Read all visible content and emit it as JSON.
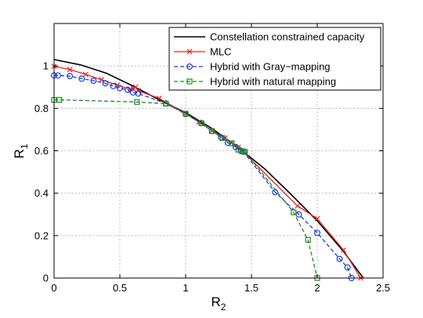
{
  "chart_data": {
    "type": "line",
    "xlabel": "R",
    "xlabel_sub": "2",
    "ylabel": "R",
    "ylabel_sub": "1",
    "xlim": [
      0,
      2.5
    ],
    "ylim": [
      0,
      1.2
    ],
    "xticks": [
      0,
      0.5,
      1,
      1.5,
      2,
      2.5
    ],
    "yticks": [
      0,
      0.2,
      0.4,
      0.6,
      0.8,
      1
    ],
    "xtick_labels": [
      "0",
      "0.5",
      "1",
      "1.5",
      "2",
      "2.5"
    ],
    "ytick_labels": [
      "0",
      "0.2",
      "0.4",
      "0.6",
      "0.8",
      "1"
    ],
    "grid": true,
    "legend_position": "top-right",
    "series": [
      {
        "name": "Constellation constrained capacity",
        "color": "#000000",
        "line_style": "solid",
        "marker": "none",
        "x": [
          0,
          0.2,
          0.4,
          0.6,
          0.8,
          1.0,
          1.2,
          1.4,
          1.6,
          1.8,
          2.0,
          2.2,
          2.35
        ],
        "y": [
          1.03,
          1.005,
          0.965,
          0.905,
          0.84,
          0.78,
          0.705,
          0.615,
          0.515,
          0.395,
          0.27,
          0.125,
          0.0
        ]
      },
      {
        "name": "MLC",
        "color": "#e8201c",
        "line_style": "solid",
        "marker": "x",
        "x": [
          0,
          0.12,
          0.24,
          0.36,
          0.48,
          0.58,
          0.6,
          0.62,
          0.64,
          0.8,
          1.0,
          1.1,
          1.2,
          1.3,
          1.35,
          1.4,
          1.43,
          1.85,
          2.0,
          2.2,
          2.33
        ],
        "y": [
          0.998,
          0.983,
          0.96,
          0.935,
          0.91,
          0.89,
          0.893,
          0.9,
          0.883,
          0.847,
          0.775,
          0.735,
          0.695,
          0.66,
          0.638,
          0.617,
          0.6,
          0.34,
          0.28,
          0.132,
          0.0
        ]
      },
      {
        "name": "Hybrid with Gray−mapping",
        "color": "#1f3fd8",
        "line_style": "dashed",
        "marker": "o",
        "x": [
          0.0,
          0.03,
          0.12,
          0.21,
          0.3,
          0.39,
          0.45,
          0.5,
          0.56,
          0.6,
          0.64,
          0.85,
          1.0,
          1.12,
          1.2,
          1.27,
          1.32,
          1.38,
          1.42,
          1.44,
          1.68,
          1.86,
          2.0,
          2.17,
          2.23,
          2.26
        ],
        "y": [
          0.955,
          0.955,
          0.952,
          0.94,
          0.93,
          0.918,
          0.905,
          0.895,
          0.887,
          0.875,
          0.87,
          0.823,
          0.773,
          0.73,
          0.693,
          0.663,
          0.637,
          0.618,
          0.6,
          0.595,
          0.405,
          0.3,
          0.213,
          0.09,
          0.05,
          0.0
        ]
      },
      {
        "name": "Hybrid with natural mapping",
        "color": "#1f8a1f",
        "line_style": "dashed",
        "marker": "square",
        "x": [
          0.0,
          0.04,
          0.63,
          0.85,
          1.0,
          1.12,
          1.2,
          1.28,
          1.35,
          1.4,
          1.43,
          1.45,
          1.82,
          1.93,
          2.0
        ],
        "y": [
          0.84,
          0.84,
          0.83,
          0.822,
          0.775,
          0.73,
          0.693,
          0.66,
          0.635,
          0.605,
          0.597,
          0.595,
          0.31,
          0.18,
          0.0
        ]
      }
    ]
  }
}
